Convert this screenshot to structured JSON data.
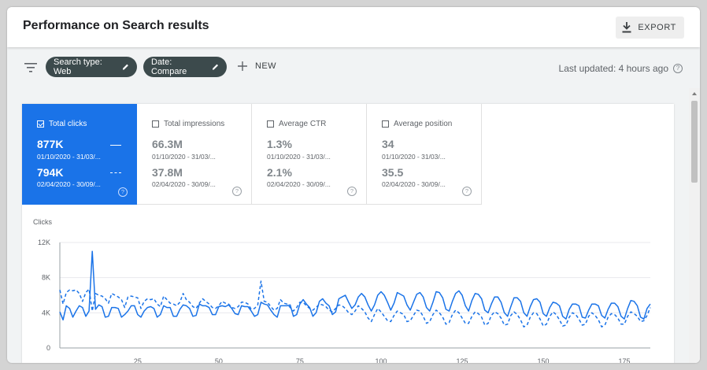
{
  "header": {
    "title": "Performance on Search results",
    "export_label": "EXPORT"
  },
  "filters": {
    "chips": [
      {
        "label": "Search type: Web"
      },
      {
        "label": "Date: Compare"
      }
    ],
    "new_label": "NEW",
    "last_updated": "Last updated: 4 hours ago"
  },
  "metrics": [
    {
      "label": "Total clicks",
      "checked": true,
      "value1": "877K",
      "range1": "01/10/2020 - 31/03/...",
      "value2": "794K",
      "range2": "02/04/2020 - 30/09/..."
    },
    {
      "label": "Total impressions",
      "checked": false,
      "value1": "66.3M",
      "range1": "01/10/2020 - 31/03/...",
      "value2": "37.8M",
      "range2": "02/04/2020 - 30/09/..."
    },
    {
      "label": "Average CTR",
      "checked": false,
      "value1": "1.3%",
      "range1": "01/10/2020 - 31/03/...",
      "value2": "2.1%",
      "range2": "02/04/2020 - 30/09/..."
    },
    {
      "label": "Average position",
      "checked": false,
      "value1": "34",
      "range1": "01/10/2020 - 31/03/...",
      "value2": "35.5",
      "range2": "02/04/2020 - 30/09/..."
    }
  ],
  "colors": {
    "accent": "#1a73e8",
    "chip": "#3c4a4c"
  },
  "chart_data": {
    "type": "line",
    "ylabel": "Clicks",
    "y_ticks": [
      "0",
      "4K",
      "8K",
      "12K"
    ],
    "ylim": [
      0,
      12000
    ],
    "x_ticks": [
      25,
      50,
      75,
      100,
      125,
      150,
      175
    ],
    "xlim": [
      1,
      183
    ],
    "grid": true,
    "series": [
      {
        "style": "solid",
        "values": [
          4100,
          3200,
          4800,
          4500,
          3500,
          4200,
          4800,
          4600,
          3600,
          4200,
          11000,
          4400,
          4900,
          4700,
          3500,
          3600,
          4600,
          4600,
          4500,
          3500,
          3800,
          4200,
          4800,
          4800,
          3800,
          3500,
          4200,
          4600,
          4700,
          4500,
          3500,
          3800,
          4800,
          4600,
          4600,
          3600,
          3600,
          4400,
          4900,
          4800,
          4500,
          3600,
          3700,
          5000,
          4800,
          4800,
          4600,
          3800,
          3800,
          4700,
          4800,
          4700,
          4900,
          4500,
          3900,
          3800,
          4800,
          4700,
          4700,
          4200,
          3600,
          3800,
          5200,
          5000,
          4900,
          4300,
          3800,
          3500,
          4800,
          4800,
          4800,
          4900,
          3600,
          3800,
          5000,
          5500,
          5000,
          4600,
          3600,
          4000,
          5300,
          5600,
          5100,
          4800,
          3800,
          4100,
          5600,
          5800,
          6000,
          5200,
          4500,
          4900,
          5800,
          6200,
          5800,
          4900,
          4200,
          4900,
          6000,
          6400,
          6000,
          5200,
          4300,
          5100,
          6300,
          6100,
          5900,
          4900,
          4300,
          5200,
          6100,
          6300,
          5800,
          4600,
          4200,
          5200,
          6400,
          6300,
          5700,
          4400,
          4200,
          5300,
          6200,
          6500,
          6000,
          4800,
          4200,
          5400,
          6200,
          6100,
          5600,
          4300,
          4000,
          5000,
          5800,
          5800,
          5200,
          4000,
          3600,
          4700,
          5700,
          5700,
          5300,
          4000,
          3600,
          4700,
          5500,
          5600,
          5200,
          3900,
          3600,
          4600,
          5200,
          5100,
          4800,
          3600,
          3300,
          4400,
          5000,
          5000,
          4800,
          3500,
          3400,
          4300,
          5000,
          5000,
          4800,
          3700,
          3400,
          4400,
          5100,
          5100,
          4700,
          3600,
          3300,
          4500,
          5400,
          5300,
          4800,
          3500,
          3300,
          4500,
          5000
        ]
      },
      {
        "style": "dashed",
        "values": [
          6600,
          5000,
          6300,
          6600,
          6500,
          6600,
          6200,
          5300,
          6300,
          6700,
          4200,
          6200,
          6000,
          5900,
          5600,
          5100,
          6200,
          6000,
          5800,
          5500,
          4600,
          5800,
          5900,
          5800,
          5700,
          4500,
          5300,
          5600,
          5500,
          5600,
          5000,
          4700,
          5900,
          5500,
          5100,
          5000,
          4800,
          5200,
          6200,
          5500,
          5200,
          4700,
          4500,
          5100,
          5600,
          5300,
          5000,
          4600,
          4500,
          4800,
          5300,
          5100,
          5000,
          4600,
          4500,
          4700,
          5200,
          5200,
          5000,
          4400,
          4500,
          4900,
          7600,
          5300,
          5200,
          4700,
          4300,
          4500,
          5500,
          5100,
          5000,
          4600,
          4200,
          4600,
          5200,
          5200,
          4800,
          4500,
          4300,
          4600,
          5000,
          4900,
          4700,
          4300,
          4100,
          4500,
          4900,
          4800,
          4500,
          4000,
          3800,
          4200,
          4800,
          4500,
          4100,
          3400,
          3000,
          3800,
          4500,
          4100,
          3600,
          3100,
          3000,
          3700,
          4200,
          4000,
          3800,
          3000,
          3100,
          3700,
          4300,
          4200,
          3600,
          2800,
          3000,
          3800,
          4300,
          4000,
          3500,
          2700,
          2900,
          3800,
          4300,
          4000,
          3400,
          2800,
          2800,
          3600,
          4100,
          3900,
          3500,
          2600,
          2800,
          3700,
          4100,
          3900,
          3400,
          2600,
          2700,
          3700,
          4100,
          3800,
          3200,
          2400,
          2600,
          3500,
          4000,
          3900,
          3300,
          2500,
          2700,
          3600,
          4100,
          3800,
          3200,
          2500,
          2600,
          3500,
          4000,
          3800,
          3300,
          2600,
          2700,
          3600,
          4000,
          3700,
          3200,
          2400,
          2600,
          3500,
          3900,
          3800,
          3400,
          2700,
          2700,
          3600,
          4100,
          3900,
          3600,
          3000,
          3100,
          3700,
          4600
        ]
      }
    ]
  }
}
